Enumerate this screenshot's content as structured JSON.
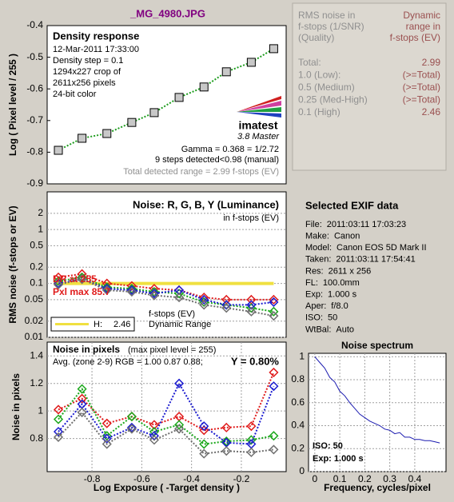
{
  "title": "_MG_4980.JPG",
  "chart_data": [
    {
      "type": "line",
      "marker": "square",
      "y_label": "Log ( Pixel level / 255 )",
      "x": [
        -0.935,
        -0.84,
        -0.74,
        -0.64,
        -0.55,
        -0.45,
        -0.35,
        -0.26,
        -0.16,
        -0.07
      ],
      "series": [
        {
          "color": "#1c9c1c",
          "values": [
            -0.794,
            -0.756,
            -0.741,
            -0.706,
            -0.675,
            -0.627,
            -0.594,
            -0.546,
            -0.516,
            -0.473
          ]
        }
      ],
      "xlim": [
        -0.98,
        -0.02
      ],
      "ylim": [
        -0.9,
        -0.4
      ],
      "yticks": [
        -0.9,
        -0.8,
        -0.7,
        -0.6,
        -0.5,
        -0.4
      ],
      "grid": false,
      "annotations": [
        "Density response",
        "12-Mar-2011 17:33:00",
        "Density step = 0.1",
        "1294x227 crop of",
        "2611x256 pixels",
        "24-bit color",
        "imatest",
        "3.8  Master",
        "Gamma = 0.368 = 1/2.72",
        "9 steps detected<0.98 (manual)",
        "Total detected range = 2.99 f-stops (EV)"
      ]
    },
    {
      "type": "line",
      "marker": "diamond",
      "log_y": true,
      "y_label": "RMS noise (f-stops or EV)",
      "x": [
        -0.935,
        -0.84,
        -0.74,
        -0.64,
        -0.55,
        -0.45,
        -0.35,
        -0.26,
        -0.16,
        -0.07
      ],
      "series": [
        {
          "color": "#e01c1c",
          "values": [
            0.13,
            0.15,
            0.1,
            0.09,
            0.08,
            0.075,
            0.055,
            0.05,
            0.05,
            0.05
          ]
        },
        {
          "color": "#1ca81c",
          "values": [
            0.11,
            0.13,
            0.085,
            0.08,
            0.07,
            0.065,
            0.045,
            0.04,
            0.035,
            0.03
          ]
        },
        {
          "color": "#1c1cd0",
          "values": [
            0.1,
            0.12,
            0.08,
            0.075,
            0.065,
            0.075,
            0.05,
            0.04,
            0.04,
            0.045
          ]
        },
        {
          "color": "#707070",
          "values": [
            0.095,
            0.12,
            0.075,
            0.07,
            0.06,
            0.055,
            0.04,
            0.035,
            0.03,
            0.025
          ]
        }
      ],
      "xlim": [
        -0.98,
        -0.02
      ],
      "ylim": [
        0.01,
        5
      ],
      "yticks": [
        0.01,
        0.02,
        0.05,
        0.1,
        0.2,
        0.5,
        1,
        2
      ],
      "grid": true,
      "dr_level": 0.1,
      "dr_color": "#f0e040",
      "dr_legend": {
        "name": "H:",
        "value": 2.46
      },
      "annotations": [
        "Noise: R, G, B, Y (Luminance)",
        "in f-stops (EV)",
        "DR at 255",
        "Pxl max 85.7",
        "f-stops (EV)",
        "Dynamic Range"
      ]
    },
    {
      "type": "line",
      "marker": "diamond",
      "y_label": "Noise in pixels",
      "x_label": "Log Exposure ( -Target density )",
      "x": [
        -0.935,
        -0.84,
        -0.74,
        -0.64,
        -0.55,
        -0.45,
        -0.35,
        -0.26,
        -0.16,
        -0.07
      ],
      "series": [
        {
          "color": "#e01c1c",
          "values": [
            1.01,
            1.09,
            0.91,
            0.96,
            0.9,
            0.96,
            0.86,
            0.88,
            0.89,
            1.28
          ]
        },
        {
          "color": "#1ca81c",
          "values": [
            0.94,
            1.16,
            0.82,
            0.96,
            0.85,
            0.9,
            0.76,
            0.78,
            0.79,
            0.82
          ]
        },
        {
          "color": "#1c1cd0",
          "values": [
            0.85,
            1.05,
            0.8,
            0.88,
            0.82,
            1.2,
            0.89,
            0.77,
            0.76,
            1.18
          ]
        },
        {
          "color": "#707070",
          "values": [
            0.81,
            0.99,
            0.76,
            0.87,
            0.79,
            0.87,
            0.69,
            0.71,
            0.7,
            0.72
          ]
        }
      ],
      "xlim": [
        -0.98,
        -0.02
      ],
      "ylim": [
        0.56,
        1.5
      ],
      "xticks": [
        -0.8,
        -0.6,
        -0.4,
        -0.2
      ],
      "yticks": [
        0.8,
        1,
        1.2,
        1.4
      ],
      "grid": true,
      "annotations": [
        "Noise in pixels",
        "(max pixel level = 255)",
        "Avg. (zone 2-9) RGB = 1.00  0.87  0.88;",
        "Y = 0.80%"
      ]
    },
    {
      "type": "line",
      "title": "Noise spectrum",
      "x_label": "Frequency, cycles/pixel",
      "x": [
        0,
        0.02,
        0.04,
        0.06,
        0.08,
        0.1,
        0.12,
        0.14,
        0.16,
        0.18,
        0.2,
        0.22,
        0.24,
        0.26,
        0.28,
        0.3,
        0.32,
        0.34,
        0.36,
        0.38,
        0.4,
        0.42,
        0.44,
        0.46,
        0.48,
        0.5
      ],
      "series": [
        {
          "color": "#1c1cb0",
          "values": [
            1.0,
            0.95,
            0.9,
            0.82,
            0.78,
            0.7,
            0.66,
            0.6,
            0.55,
            0.5,
            0.47,
            0.44,
            0.42,
            0.4,
            0.37,
            0.36,
            0.33,
            0.34,
            0.3,
            0.3,
            0.28,
            0.28,
            0.27,
            0.27,
            0.26,
            0.25
          ]
        }
      ],
      "xlim": [
        -0.025,
        0.525
      ],
      "ylim": [
        0,
        1.03
      ],
      "xticks": [
        0,
        0.1,
        0.2,
        0.3,
        0.4
      ],
      "yticks": [
        0,
        0.2,
        0.4,
        0.6,
        0.8,
        1
      ],
      "grid": true,
      "annotations": [
        "ISO:  50",
        "Exp:  1.000 s"
      ]
    }
  ],
  "dr_table": {
    "header_left": [
      "RMS noise in",
      "f-stops (1/SNR)",
      "(Quality)"
    ],
    "header_right": [
      "Dynamic",
      "range in",
      "f-stops (EV)"
    ],
    "rows": [
      [
        "Total:",
        2.99
      ],
      [
        "1.0  (Low):",
        "(>=Total)"
      ],
      [
        "0.5  (Medium)",
        "(>=Total)"
      ],
      [
        "0.25 (Med-High)",
        "(>=Total)"
      ],
      [
        "0.1  (High)",
        2.46
      ]
    ]
  },
  "exif": {
    "title": "Selected EXIF data",
    "rows": [
      [
        "File:",
        "2011:03:11 17:03:23"
      ],
      [
        "Make:",
        "Canon"
      ],
      [
        "Model:",
        "Canon EOS 5D Mark II"
      ],
      [
        "Taken:",
        "2011:03:11 17:54:41"
      ],
      [
        "Res:",
        "2611 x 256"
      ],
      [
        "FL:",
        "100.0mm"
      ],
      [
        "Exp:",
        "1.000 s"
      ],
      [
        "Aper:",
        "f/8.0"
      ],
      [
        "ISO:",
        "50"
      ],
      [
        "WtBal:",
        "Auto"
      ]
    ]
  }
}
